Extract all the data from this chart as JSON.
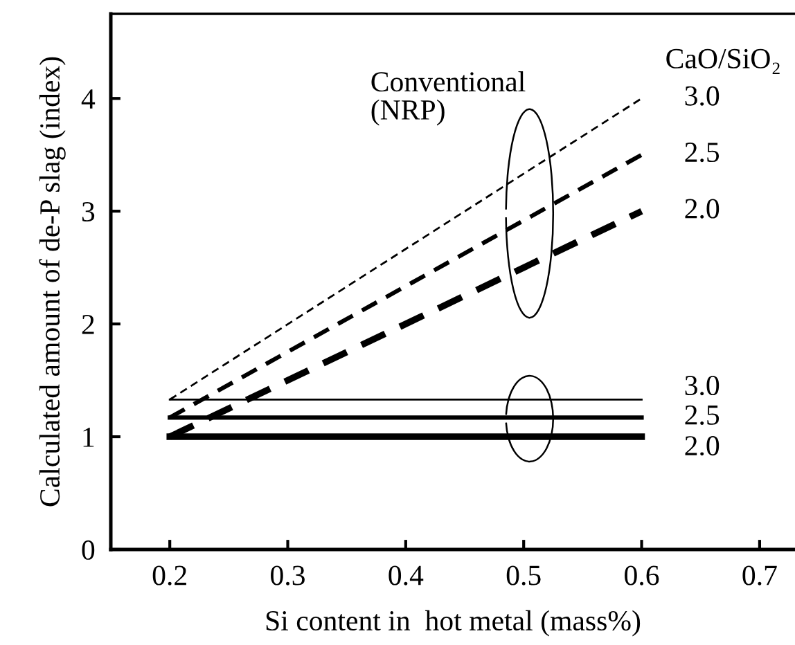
{
  "chart_data": {
    "type": "line",
    "xlabel": "Si content in  hot metal (mass%)",
    "ylabel": "Calculated amount of de-P slag (index)",
    "legend_title": "CaO/SiO₂",
    "annotations": [
      "Conventional\n(NRP)"
    ],
    "xlim": [
      0.15,
      0.73
    ],
    "xticks": [
      0.2,
      0.3,
      0.4,
      0.5,
      0.6,
      0.7
    ],
    "ylim": [
      0,
      4.75
    ],
    "yticks": [
      0,
      1,
      2,
      3,
      4
    ],
    "grid": false,
    "legend": false,
    "marker": "none",
    "x": [
      0.2,
      0.6
    ],
    "series": [
      {
        "name": "3.0",
        "color": "#000000",
        "values": [
          1.33,
          4.0
        ],
        "line_style": "dashed"
      },
      {
        "name": "2.5",
        "color": "#000000",
        "values": [
          1.17,
          3.5
        ],
        "line_style": "dashed"
      },
      {
        "name": "2.0",
        "color": "#000000",
        "values": [
          1.0,
          3.0
        ],
        "line_style": "dashed"
      },
      {
        "name": "3.0",
        "color": "#000000",
        "values": [
          1.33,
          1.33
        ],
        "line_style": "solid"
      },
      {
        "name": "2.5",
        "color": "#000000",
        "values": [
          1.17,
          1.17
        ],
        "line_style": "solid"
      },
      {
        "name": "2.0",
        "color": "#000000",
        "values": [
          1.0,
          1.0
        ],
        "line_style": "solid"
      }
    ]
  }
}
